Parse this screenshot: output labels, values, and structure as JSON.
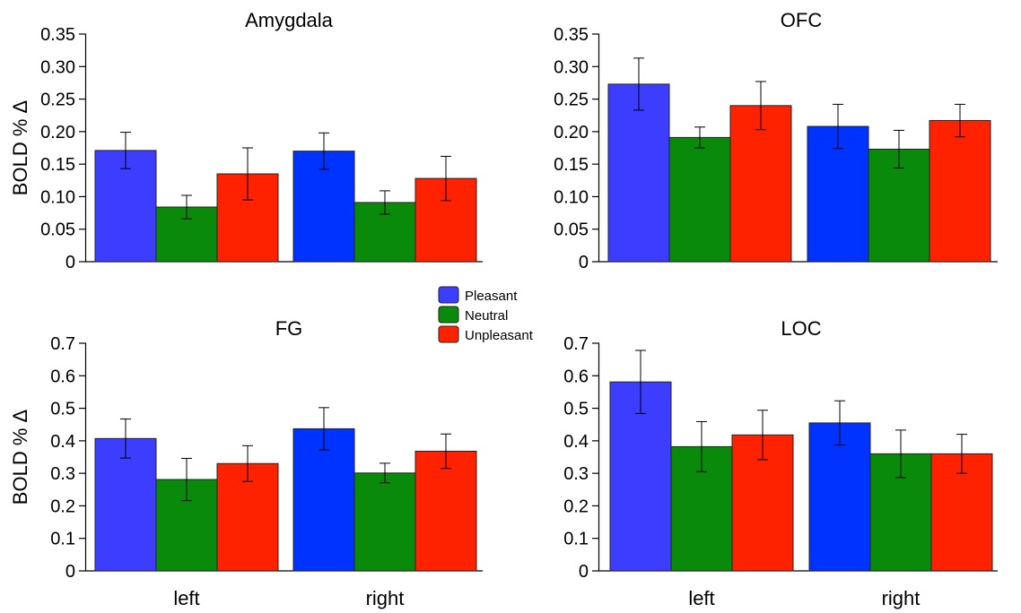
{
  "legend": [
    {
      "label": "Pleasant",
      "color": "#3d3dff"
    },
    {
      "label": "Neutral",
      "color": "#0a8a0a"
    },
    {
      "label": "Unpleasant",
      "color": "#ff2200"
    }
  ],
  "ylabel": "BOLD % Δ",
  "chart_data": [
    {
      "type": "bar",
      "title": "Amygdala",
      "categories": [
        "left",
        "right"
      ],
      "ylim": [
        0,
        0.35
      ],
      "yticks": [
        "0",
        "0.05",
        "0.10",
        "0.15",
        "0.20",
        "0.25",
        "0.30",
        "0.35"
      ],
      "ytick_values": [
        0,
        0.05,
        0.1,
        0.15,
        0.2,
        0.25,
        0.3,
        0.35
      ],
      "ylabel": "BOLD % Δ",
      "show_xlabels": false,
      "series": [
        {
          "name": "Pleasant",
          "values": [
            0.171,
            0.17
          ],
          "errors": [
            0.028,
            0.028
          ]
        },
        {
          "name": "Neutral",
          "values": [
            0.084,
            0.091
          ],
          "errors": [
            0.018,
            0.018
          ]
        },
        {
          "name": "Unpleasant",
          "values": [
            0.135,
            0.128
          ],
          "errors": [
            0.04,
            0.034
          ]
        }
      ]
    },
    {
      "type": "bar",
      "title": "OFC",
      "categories": [
        "left",
        "right"
      ],
      "ylim": [
        0,
        0.35
      ],
      "yticks": [
        "0",
        "0.05",
        "0.10",
        "0.15",
        "0.20",
        "0.25",
        "0.30",
        "0.35"
      ],
      "ytick_values": [
        0,
        0.05,
        0.1,
        0.15,
        0.2,
        0.25,
        0.3,
        0.35
      ],
      "ylabel": "",
      "show_xlabels": false,
      "series": [
        {
          "name": "Pleasant",
          "values": [
            0.273,
            0.208
          ],
          "errors": [
            0.04,
            0.034
          ]
        },
        {
          "name": "Neutral",
          "values": [
            0.191,
            0.173
          ],
          "errors": [
            0.016,
            0.029
          ]
        },
        {
          "name": "Unpleasant",
          "values": [
            0.24,
            0.217
          ],
          "errors": [
            0.037,
            0.025
          ]
        }
      ]
    },
    {
      "type": "bar",
      "title": "FG",
      "categories": [
        "left",
        "right"
      ],
      "ylim": [
        0,
        0.7
      ],
      "yticks": [
        "0",
        "0.1",
        "0.2",
        "0.3",
        "0.4",
        "0.5",
        "0.6",
        "0.7"
      ],
      "ytick_values": [
        0,
        0.1,
        0.2,
        0.3,
        0.4,
        0.5,
        0.6,
        0.7
      ],
      "ylabel": "BOLD % Δ",
      "show_xlabels": true,
      "series": [
        {
          "name": "Pleasant",
          "values": [
            0.407,
            0.437
          ],
          "errors": [
            0.06,
            0.065
          ]
        },
        {
          "name": "Neutral",
          "values": [
            0.281,
            0.301
          ],
          "errors": [
            0.065,
            0.03
          ]
        },
        {
          "name": "Unpleasant",
          "values": [
            0.33,
            0.368
          ],
          "errors": [
            0.055,
            0.053
          ]
        }
      ]
    },
    {
      "type": "bar",
      "title": "LOC",
      "categories": [
        "left",
        "right"
      ],
      "ylim": [
        0,
        0.7
      ],
      "yticks": [
        "0",
        "0.1",
        "0.2",
        "0.3",
        "0.4",
        "0.5",
        "0.6",
        "0.7"
      ],
      "ytick_values": [
        0,
        0.1,
        0.2,
        0.3,
        0.4,
        0.5,
        0.6,
        0.7
      ],
      "ylabel": "",
      "show_xlabels": true,
      "series": [
        {
          "name": "Pleasant",
          "values": [
            0.581,
            0.455
          ],
          "errors": [
            0.097,
            0.068
          ]
        },
        {
          "name": "Neutral",
          "values": [
            0.382,
            0.36
          ],
          "errors": [
            0.077,
            0.073
          ]
        },
        {
          "name": "Unpleasant",
          "values": [
            0.418,
            0.36
          ],
          "errors": [
            0.076,
            0.06
          ]
        }
      ]
    }
  ]
}
